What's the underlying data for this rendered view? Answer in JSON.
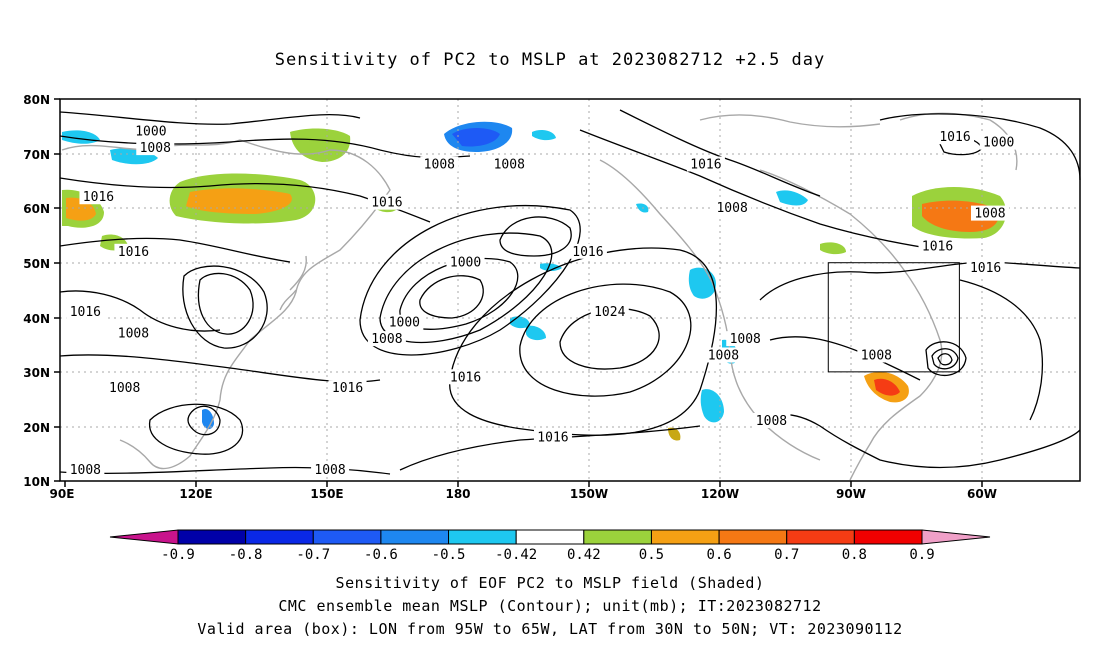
{
  "title": "Sensitivity of PC2 to MSLP at 2023082712 +2.5 day",
  "map": {
    "lat_ticks": [
      "80N",
      "70N",
      "60N",
      "50N",
      "40N",
      "30N",
      "20N",
      "10N"
    ],
    "lon_ticks": [
      "90E",
      "120E",
      "150E",
      "180",
      "150W",
      "120W",
      "90W",
      "60W"
    ],
    "contour_labels": [
      {
        "text": "1000",
        "lon": 110,
        "lat": 74
      },
      {
        "text": "1008",
        "lon": 111,
        "lat": 71
      },
      {
        "text": "1008",
        "lon": 176,
        "lat": 68
      },
      {
        "text": "1008",
        "lon": -168,
        "lat": 68
      },
      {
        "text": "1016",
        "lon": -123,
        "lat": 68
      },
      {
        "text": "1016",
        "lon": -66,
        "lat": 73
      },
      {
        "text": "1000",
        "lon": -56,
        "lat": 72
      },
      {
        "text": "1016",
        "lon": 98,
        "lat": 62
      },
      {
        "text": "1016",
        "lon": 164,
        "lat": 61
      },
      {
        "text": "1008",
        "lon": -117,
        "lat": 60
      },
      {
        "text": "1008",
        "lon": -58,
        "lat": 59
      },
      {
        "text": "1016",
        "lon": -70,
        "lat": 53
      },
      {
        "text": "1016",
        "lon": -59,
        "lat": 49
      },
      {
        "text": "1016",
        "lon": 106,
        "lat": 52
      },
      {
        "text": "1016",
        "lon": -150,
        "lat": 52
      },
      {
        "text": "1000",
        "lon": -178,
        "lat": 50
      },
      {
        "text": "1016",
        "lon": 95,
        "lat": 41
      },
      {
        "text": "1000",
        "lon": 168,
        "lat": 39
      },
      {
        "text": "1008",
        "lon": 164,
        "lat": 36
      },
      {
        "text": "1024",
        "lon": -145,
        "lat": 41
      },
      {
        "text": "1008",
        "lon": 106,
        "lat": 37
      },
      {
        "text": "1008",
        "lon": -114,
        "lat": 36
      },
      {
        "text": "1008",
        "lon": -119,
        "lat": 33
      },
      {
        "text": "1008",
        "lon": -84,
        "lat": 33
      },
      {
        "text": "1016",
        "lon": 155,
        "lat": 27
      },
      {
        "text": "1016",
        "lon": -178,
        "lat": 29
      },
      {
        "text": "1008",
        "lon": 104,
        "lat": 27
      },
      {
        "text": "1016",
        "lon": -158,
        "lat": 18
      },
      {
        "text": "1008",
        "lon": -108,
        "lat": 21
      },
      {
        "text": "1008",
        "lon": 95,
        "lat": 12
      },
      {
        "text": "1008",
        "lon": 151,
        "lat": 12
      }
    ]
  },
  "colorbar": {
    "labels": [
      "-0.9",
      "-0.8",
      "-0.7",
      "-0.6",
      "-0.5",
      "-0.42",
      "0.42",
      "0.5",
      "0.6",
      "0.7",
      "0.8",
      "0.9"
    ],
    "colors": [
      "#0000a8",
      "#0a28e6",
      "#1e5af5",
      "#1e87f0",
      "#1ec8f0",
      "#ffffff",
      "#9bd23c",
      "#f5a014",
      "#f57814",
      "#f53c14",
      "#f00000"
    ],
    "low_end_color": "#c8148c",
    "high_end_color": "#f0a0c8"
  },
  "captions": {
    "line1": "Sensitivity of EOF PC2 to MSLP field (Shaded)",
    "line2": "CMC ensemble mean MSLP (Contour); unit(mb); IT:2023082712",
    "line3": "Valid area (box): LON from 95W to 65W, LAT from 30N to 50N; VT: 2023090112"
  },
  "valid_box": {
    "lon_min": -95,
    "lon_max": -65,
    "lat_min": 30,
    "lat_max": 50
  }
}
